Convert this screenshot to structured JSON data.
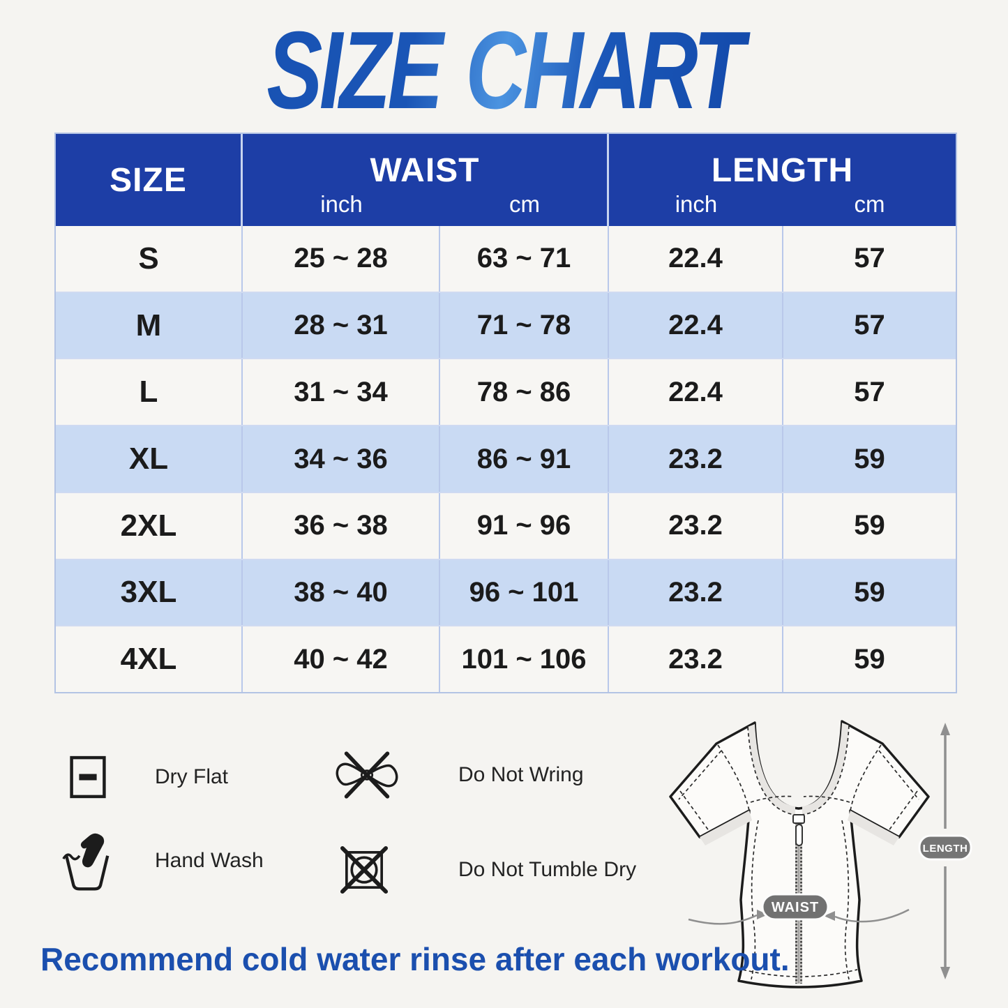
{
  "title": "SIZE CHART",
  "table": {
    "header": {
      "size": "SIZE",
      "waist": "WAIST",
      "length": "LENGTH",
      "units": [
        "inch",
        "cm",
        "inch",
        "cm"
      ]
    },
    "rows": [
      [
        "S",
        "25 ~ 28",
        "63 ~ 71",
        "22.4",
        "57"
      ],
      [
        "M",
        "28 ~ 31",
        "71 ~ 78",
        "22.4",
        "57"
      ],
      [
        "L",
        "31 ~ 34",
        "78 ~ 86",
        "22.4",
        "57"
      ],
      [
        "XL",
        "34 ~ 36",
        "86 ~ 91",
        "23.2",
        "59"
      ],
      [
        "2XL",
        "36 ~ 38",
        "91 ~ 96",
        "23.2",
        "59"
      ],
      [
        "3XL",
        "38 ~ 40",
        "96 ~ 101",
        "23.2",
        "59"
      ],
      [
        "4XL",
        "40 ~ 42",
        "101 ~ 106",
        "23.2",
        "59"
      ]
    ]
  },
  "care": {
    "items": [
      {
        "icon": "dry-flat-icon",
        "label": "Dry Flat"
      },
      {
        "icon": "do-not-wring-icon",
        "label": "Do Not Wring"
      },
      {
        "icon": "hand-wash-icon",
        "label": "Hand Wash"
      },
      {
        "icon": "do-not-tumble-dry-icon",
        "label": "Do Not Tumble Dry"
      }
    ]
  },
  "diagram": {
    "waist_badge": "WAIST",
    "length_badge": "LENGTH"
  },
  "footer": {
    "note": "Recommend cold water rinse after each workout."
  },
  "colors": {
    "header_blue": "#1d3ea6",
    "row_blue": "#c9daf3",
    "row_light": "#f7f6f3",
    "separator_blue": "#b9c8ea",
    "title_blue_dark": "#0c3e9e",
    "title_blue_light": "#4b93e0",
    "footer_blue": "#1b4fae",
    "badge_gray": "#757575",
    "arrow_gray": "#8f8f8f"
  },
  "chart_data": {
    "type": "table",
    "title": "SIZE CHART",
    "columns": [
      "SIZE",
      "WAIST (inch)",
      "WAIST (cm)",
      "LENGTH (inch)",
      "LENGTH (cm)"
    ],
    "rows": [
      [
        "S",
        "25 ~ 28",
        "63 ~ 71",
        "22.4",
        "57"
      ],
      [
        "M",
        "28 ~ 31",
        "71 ~ 78",
        "22.4",
        "57"
      ],
      [
        "L",
        "31 ~ 34",
        "78 ~ 86",
        "22.4",
        "57"
      ],
      [
        "XL",
        "34 ~ 36",
        "86 ~ 91",
        "23.2",
        "59"
      ],
      [
        "2XL",
        "36 ~ 38",
        "91 ~ 96",
        "23.2",
        "59"
      ],
      [
        "3XL",
        "38 ~ 40",
        "96 ~ 101",
        "23.2",
        "59"
      ],
      [
        "4XL",
        "40 ~ 42",
        "101 ~ 106",
        "23.2",
        "59"
      ]
    ]
  }
}
